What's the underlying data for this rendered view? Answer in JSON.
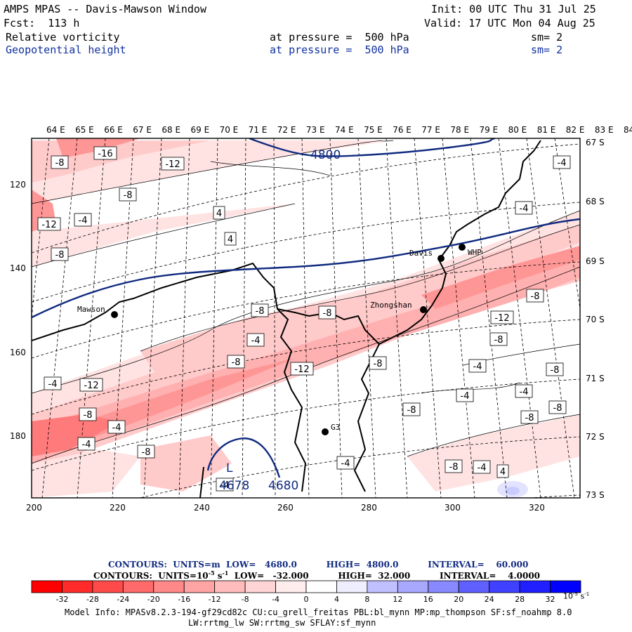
{
  "header": {
    "title": "AMPS MPAS -- Davis-Mawson Window",
    "init": "Init: 00 UTC Thu 31 Jul 25",
    "fcst": "Fcst:  113 h",
    "valid": "Valid: 17 UTC Mon 04 Aug 25",
    "field1": {
      "name": "Relative vorticity",
      "level": "at pressure =  500 hPa",
      "sm": "sm= 2"
    },
    "field2": {
      "name": "Geopotential height",
      "level": "at pressure =  500 hPa",
      "sm": "sm= 2"
    }
  },
  "axes": {
    "top_lon_labels": [
      "64 E",
      "65 E",
      "66 E",
      "67 E",
      "68 E",
      "69 E",
      "70 E",
      "71 E",
      "72 E",
      "73 E",
      "74 E",
      "75 E",
      "76 E",
      "77 E",
      "78 E",
      "79 E",
      "80 E",
      "81 E",
      "82 E",
      "83 E",
      "84 E"
    ],
    "right_lat_labels": [
      "67 S",
      "68 S",
      "69 S",
      "70 S",
      "71 S",
      "72 S",
      "73 S"
    ],
    "left_y_labels": [
      "120",
      "140",
      "160",
      "180"
    ],
    "bottom_x_labels": [
      "200",
      "220",
      "240",
      "260",
      "280",
      "300",
      "320"
    ]
  },
  "stations": [
    {
      "name": "Mawson"
    },
    {
      "name": "Davis"
    },
    {
      "name": "WHP"
    },
    {
      "name": "Zhongshan"
    },
    {
      "name": "G3"
    }
  ],
  "contour_labels": [
    "-16",
    "-8",
    "-12",
    "-8",
    "-4",
    "4",
    "4",
    "-12",
    "-8",
    "-4",
    "-4",
    "-8",
    "-8",
    "-8",
    "-12",
    "-8",
    "-4",
    "-8",
    "-12",
    "-8",
    "-4",
    "-8",
    "-4",
    "-12",
    "-8",
    "-4",
    "-4",
    "-8",
    "-4",
    "-8",
    "-4",
    "-4",
    "-8",
    "-8",
    "4",
    "-4",
    "-8",
    "-4"
  ],
  "height_labels": [
    "4800",
    "4678",
    "4680"
  ],
  "low_marker": "L",
  "footer": {
    "contours_height": "CONTOURS:  UNITS=m  LOW=   4680.0          HIGH=  4800.0          INTERVAL=    60.000",
    "contours_vort_prefix": "CONTOURS:  UNITS=10",
    "contours_vort_exp": "-5",
    "contours_vort_suffix": " s",
    "contours_vort_exp2": "-1",
    "contours_vort_rest": "  LOW=   -32.000          HIGH=  32.000          INTERVAL=    4.0000",
    "colorbar_ticks": [
      "-32",
      "-28",
      "-24",
      "-20",
      "-16",
      "-12",
      "-8",
      "-4",
      "0",
      "4",
      "8",
      "12",
      "16",
      "20",
      "24",
      "28",
      "32"
    ],
    "colorbar_unit": "10",
    "colorbar_unit_exp": "-5",
    "colorbar_unit_s": " s",
    "colorbar_unit_exp2": "-1",
    "colorbar_colors": [
      "#ff0000",
      "#ff3333",
      "#ff5a5a",
      "#ff7a7a",
      "#ff9696",
      "#ffb0b0",
      "#ffcaca",
      "#ffe3e3",
      "#ffffff",
      "#ffffff",
      "#e3e3ff",
      "#caccff",
      "#9a9aff",
      "#7a7aff",
      "#5050ff",
      "#3030ff",
      "#0000ff"
    ],
    "model_info_1": "Model Info: MPASv8.2.3-194-gf29cd82c CU:cu_grell_freitas PBL:bl_mynn MP:mp_thompson SF:sf_noahmp 8.0",
    "model_info_2": "LW:rrtmg_lw SW:rrtmg_sw SFLAY:sf_mynn"
  }
}
